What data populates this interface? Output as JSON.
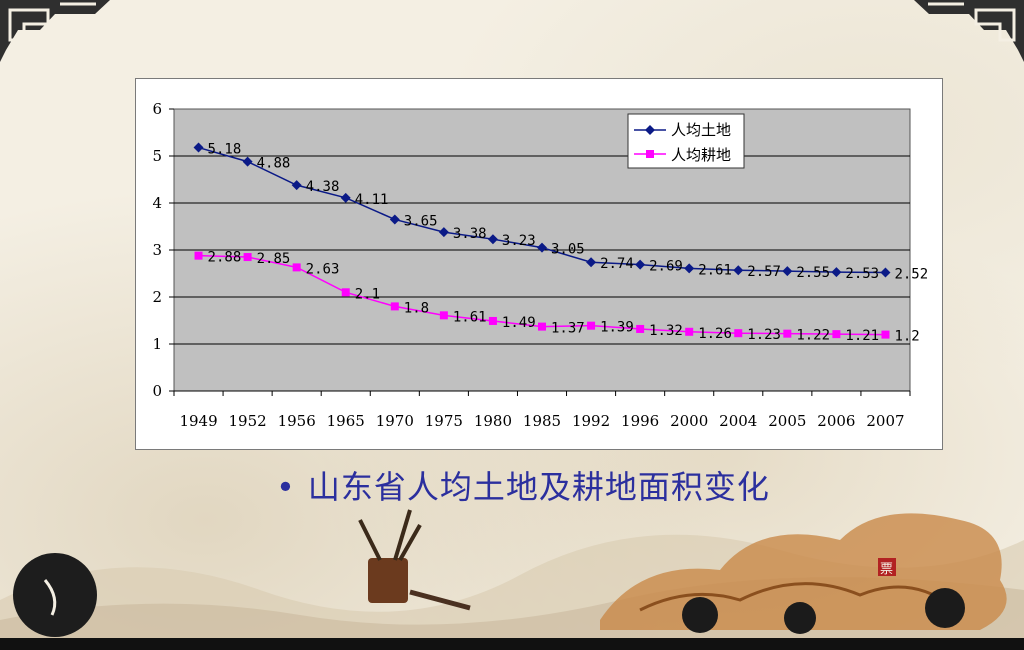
{
  "caption": {
    "bullet": "•",
    "text": "山东省人均土地及耕地面积变化"
  },
  "decor": {
    "seal_char": "票"
  },
  "chart_data": {
    "type": "line",
    "categories": [
      "1949",
      "1952",
      "1956",
      "1965",
      "1970",
      "1975",
      "1980",
      "1985",
      "1992",
      "1996",
      "2000",
      "2004",
      "2005",
      "2006",
      "2007"
    ],
    "series": [
      {
        "name": "人均土地",
        "color": "#0b1a87",
        "marker": "diamond",
        "values": [
          5.18,
          4.88,
          4.38,
          4.11,
          3.65,
          3.38,
          3.23,
          3.05,
          2.74,
          2.69,
          2.61,
          2.57,
          2.55,
          2.53,
          2.52
        ],
        "labels": [
          "5.18",
          "4.88",
          "4.38",
          "4.11",
          "3.65",
          "3.38",
          "3.23",
          "3.05",
          "2.74",
          "2.69",
          "2.61",
          "2.57",
          "2.55",
          "2.53",
          "2.52"
        ]
      },
      {
        "name": "人均耕地",
        "color": "#ff00ff",
        "marker": "square",
        "values": [
          2.88,
          2.85,
          2.63,
          2.1,
          1.8,
          1.61,
          1.49,
          1.37,
          1.39,
          1.32,
          1.26,
          1.23,
          1.22,
          1.21,
          1.2
        ],
        "labels": [
          "2.88",
          "2.85",
          "2.63",
          "2.1",
          "1.8",
          "1.61",
          "1.49",
          "1.37",
          "1.39",
          "1.32",
          "1.26",
          "1.23",
          "1.22",
          "1.21",
          "1.2"
        ]
      }
    ],
    "ylim": [
      0,
      6
    ],
    "yticks": [
      "0",
      "1",
      "2",
      "3",
      "4",
      "5",
      "6"
    ],
    "grid": true,
    "plot_background": "#c0c0c0",
    "legend_position": "top-right",
    "title": "",
    "xlabel": "",
    "ylabel": ""
  }
}
